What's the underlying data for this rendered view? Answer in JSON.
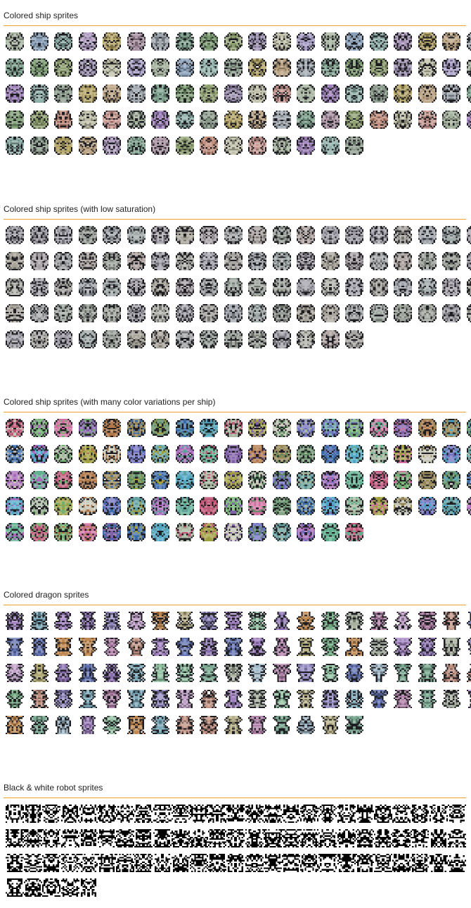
{
  "page": {
    "background": "#ffffff",
    "accent_rule": "#f0a030"
  },
  "sections": [
    {
      "title": "Colored ship sprites",
      "kind": "ship",
      "count": 95,
      "cols": 20,
      "palette": [
        "#8a9a8a",
        "#a3b09c",
        "#9b8fb0",
        "#c08a78",
        "#7fa38f",
        "#b0a060",
        "#8aa0b8",
        "#9c7fb8",
        "#c0c0a8",
        "#7a9a70",
        "#a890a0",
        "#b8a080",
        "#8fb0a8",
        "#a8a0c8",
        "#c89890",
        "#8fa070",
        "#a0a8b0",
        "#b09cc0"
      ]
    },
    {
      "title": "Colored ship sprites (with low saturation)",
      "kind": "ship",
      "count": 95,
      "cols": 20,
      "palette": [
        "#9a9e98",
        "#a8a6a2",
        "#a2a0a8",
        "#aaa39f",
        "#9da59f",
        "#a7a49a",
        "#a0a4aa",
        "#a29fa8",
        "#b0b0aa",
        "#9ea39c",
        "#a8a2a6",
        "#aca79f",
        "#a0aaa8",
        "#a9a7b0",
        "#b0a4a2",
        "#a0a49c",
        "#a6a8aa",
        "#a9a5ae"
      ]
    },
    {
      "title": "Colored ship sprites (with many color variations per ship)",
      "kind": "ship-multi",
      "count": 95,
      "cols": 20,
      "palette": [
        "#5a8a60",
        "#8060a8",
        "#c05878",
        "#60a0a0",
        "#a0a040",
        "#3a6aa8",
        "#b07848",
        "#70b070",
        "#a868b8",
        "#c8c8b8",
        "#50a8c8",
        "#988858",
        "#d070a0",
        "#60b090",
        "#7070c0",
        "#a8b8a0"
      ]
    },
    {
      "title": "Colored dragon sprites",
      "kind": "dragon",
      "count": 95,
      "cols": 20,
      "palette": [
        "#a8b0a0",
        "#8a70b0",
        "#c0a0c8",
        "#7aa890",
        "#b0a870",
        "#6070b0",
        "#c09080",
        "#90c0a0",
        "#a080c0",
        "#7aa8b8",
        "#b8b088",
        "#9088c0",
        "#c08850",
        "#70a880",
        "#a0b8c8",
        "#b080a8"
      ]
    },
    {
      "title": "Black & white robot sprites",
      "kind": "robot",
      "count": 80,
      "cols": 25,
      "palette": [
        "#000000"
      ]
    }
  ]
}
